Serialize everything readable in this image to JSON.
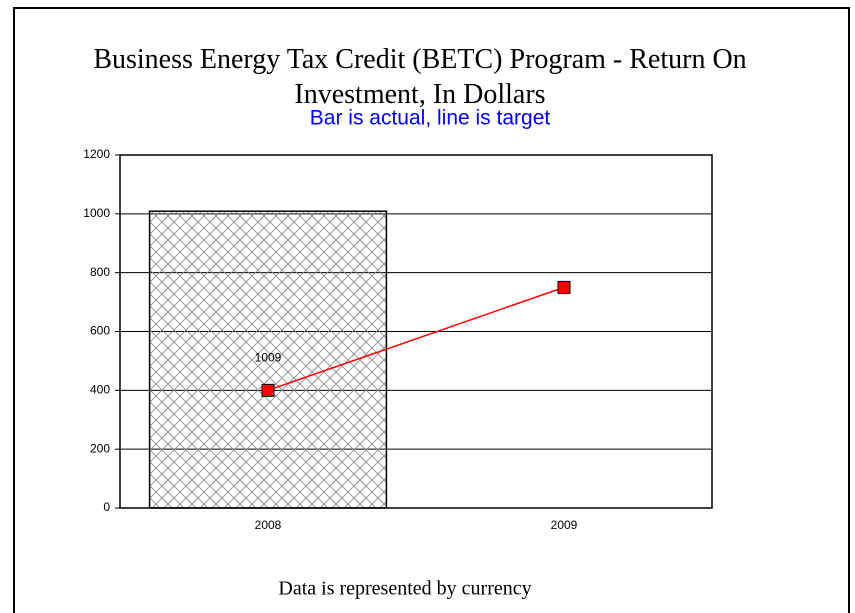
{
  "chart_data": {
    "type": "bar",
    "title": "Business Energy Tax Credit (BETC) Program - Return On Investment, In Dollars",
    "subtitle": "Bar is actual, line is target",
    "footer": "Data is represented by currency",
    "categories": [
      "2008",
      "2009"
    ],
    "series": [
      {
        "type": "bar",
        "color": "#000000",
        "hatch": true,
        "values": [
          1009,
          null
        ]
      },
      {
        "type": "line",
        "color": "#ff0000",
        "values": [
          400,
          750
        ]
      }
    ],
    "ylim": [
      0,
      1200
    ],
    "yticks": [
      0,
      200,
      400,
      600,
      800,
      1000,
      1200
    ],
    "grid": true
  }
}
